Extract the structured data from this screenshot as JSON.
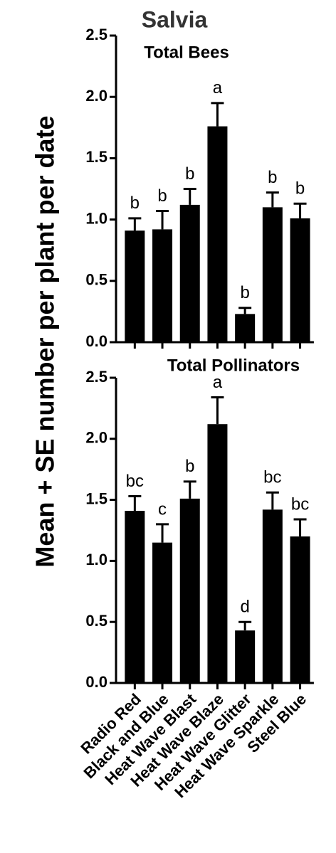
{
  "title": "Salvia",
  "y_label": "Mean + SE number per plant per date",
  "chart_data": [
    {
      "type": "bar",
      "subtitle": "Total Bees",
      "color": "#000000",
      "values": [
        0.91,
        0.92,
        1.12,
        1.76,
        0.23,
        1.1,
        1.01
      ],
      "errors": [
        0.1,
        0.15,
        0.13,
        0.19,
        0.05,
        0.12,
        0.12
      ],
      "letters": [
        "b",
        "b",
        "b",
        "a",
        "b",
        "b",
        "b"
      ],
      "ylim": [
        0,
        2.5
      ],
      "yticks": [
        {
          "value": 0,
          "label": "0.0"
        },
        0.5,
        {
          "value": 1,
          "label": "1.0"
        },
        1.5,
        {
          "value": 2,
          "label": "2.0"
        },
        2.5
      ]
    },
    {
      "type": "bar",
      "subtitle": "Total Pollinators",
      "color": "#000000",
      "categories": [
        "Radio Red",
        "Black and Blue",
        "Heat Wave Blast",
        "Heat Wave Blaze",
        "Heat Wave Glitter",
        "Heat Wave Sparkle",
        "Steel Blue"
      ],
      "values": [
        1.41,
        1.15,
        1.51,
        2.12,
        0.43,
        1.42,
        1.2
      ],
      "errors": [
        0.12,
        0.15,
        0.14,
        0.22,
        0.07,
        0.14,
        0.14
      ],
      "letters": [
        "bc",
        "c",
        "b",
        "a",
        "d",
        "bc",
        "bc"
      ],
      "ylim": [
        0,
        2.5
      ],
      "yticks": [
        {
          "value": 0,
          "label": "0.0"
        },
        0.5,
        {
          "value": 1,
          "label": "1.0"
        },
        1.5,
        {
          "value": 2,
          "label": "2.0"
        },
        2.5
      ]
    }
  ]
}
